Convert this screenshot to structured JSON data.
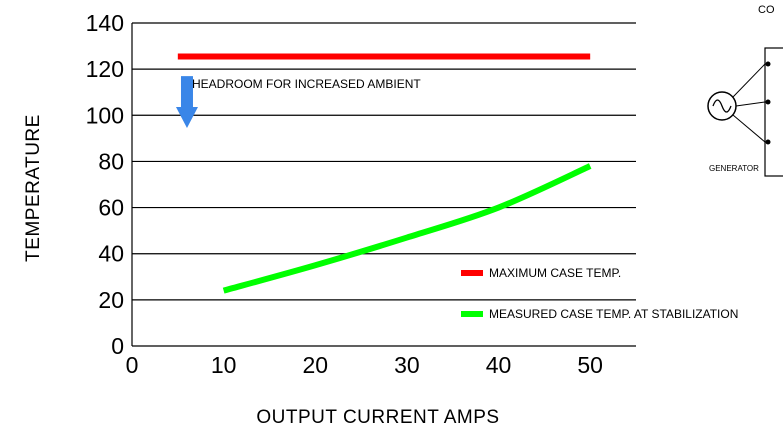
{
  "chart_data": {
    "type": "line",
    "xlabel": "OUTPUT CURRENT AMPS",
    "ylabel": "TEMPERATURE",
    "xlim": [
      0,
      55
    ],
    "ylim": [
      0,
      140
    ],
    "x_ticks": [
      0,
      10,
      20,
      30,
      40,
      50
    ],
    "y_ticks": [
      0,
      20,
      40,
      60,
      80,
      100,
      120,
      140
    ],
    "grid": "horizontal",
    "series": [
      {
        "name": "MAXIMUM CASE TEMP.",
        "color": "#ff0000",
        "x": [
          5,
          50
        ],
        "y": [
          125.5,
          125.5
        ]
      },
      {
        "name": "MEASURED CASE TEMP. AT STABILIZATION",
        "color": "#00ff00",
        "x": [
          10,
          20,
          30,
          40,
          50
        ],
        "y": [
          24,
          35,
          47,
          60,
          78
        ]
      }
    ],
    "annotations": [
      {
        "text": "HEADROOM FOR INCREASED AMBIENT",
        "arrow_color": "#3a86e8",
        "arrow_x": 6,
        "arrow_from_y": 120,
        "arrow_to_y": 101
      }
    ],
    "legend_placement": "bottom-right"
  },
  "side_diagram": {
    "corner_label": "CO",
    "generator_label": "GENERATOR"
  }
}
